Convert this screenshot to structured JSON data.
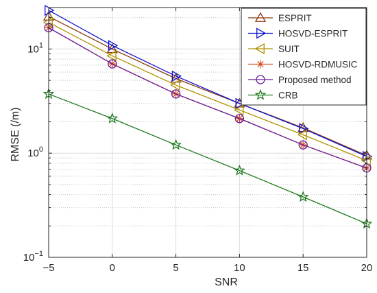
{
  "chart_data": {
    "type": "line",
    "title": "",
    "xlabel": "SNR",
    "ylabel": "RMSE (/m)",
    "x": [
      -5,
      0,
      5,
      10,
      15,
      20
    ],
    "xlim": [
      -5,
      20
    ],
    "ylim": [
      0.1,
      25
    ],
    "yscale": "log",
    "grid": true,
    "legend_position": "top-right",
    "xticks": [
      -5,
      0,
      5,
      10,
      15,
      20
    ],
    "xtick_labels": [
      "−5",
      "0",
      "5",
      "10",
      "15",
      "20"
    ],
    "ytick_labels": [
      {
        "value": 0.1,
        "base": "10",
        "exp": "−1"
      },
      {
        "value": 1,
        "base": "10",
        "exp": "0"
      },
      {
        "value": 10,
        "base": "10",
        "exp": "1"
      }
    ],
    "series": [
      {
        "name": "ESPRIT",
        "color": "#8B3A0F",
        "marker": "triangle-up",
        "values": [
          20.5,
          10.0,
          5.2,
          3.0,
          1.75,
          0.95
        ]
      },
      {
        "name": "HOSVD-ESPRIT",
        "color": "#1010D0",
        "marker": "triangle-right",
        "values": [
          23.5,
          10.8,
          5.5,
          3.0,
          1.72,
          0.93
        ]
      },
      {
        "name": "SUIT",
        "color": "#B09000",
        "marker": "triangle-left",
        "values": [
          18.0,
          8.6,
          4.5,
          2.6,
          1.5,
          0.85
        ]
      },
      {
        "name": "HOSVD-RDMUSIC",
        "color": "#D05020",
        "marker": "asterisk",
        "values": [
          16.0,
          7.2,
          3.7,
          2.15,
          1.2,
          0.72
        ]
      },
      {
        "name": "Proposed method",
        "color": "#6A1B9A",
        "marker": "circle",
        "values": [
          16.0,
          7.2,
          3.7,
          2.15,
          1.2,
          0.72
        ]
      },
      {
        "name": "CRB",
        "color": "#1E7A1E",
        "marker": "star",
        "values": [
          3.7,
          2.15,
          1.2,
          0.68,
          0.38,
          0.21
        ]
      }
    ]
  }
}
